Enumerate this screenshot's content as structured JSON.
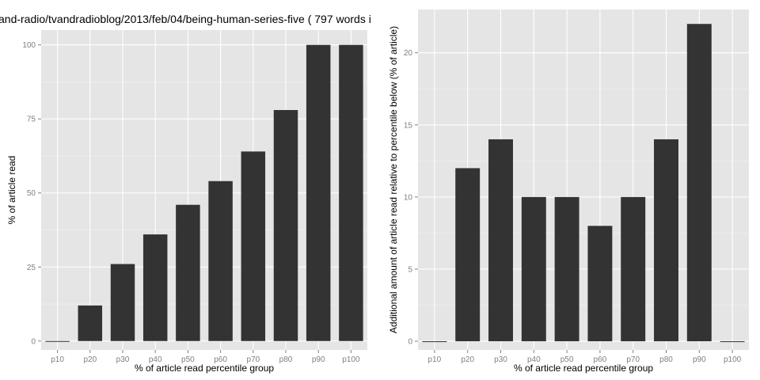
{
  "title": "and-radio/tvandradioblog/2013/feb/04/being-human-series-five ( 797 words i",
  "colors": {
    "panel": "#e5e5e5",
    "bar": "#333333",
    "grid": "#ffffff",
    "tick_text": "#7f7f7f"
  },
  "chart_data": [
    {
      "type": "bar",
      "categories": [
        "p10",
        "p20",
        "p30",
        "p40",
        "p50",
        "p60",
        "p70",
        "p80",
        "p90",
        "p100"
      ],
      "values": [
        0,
        12,
        26,
        36,
        46,
        54,
        64,
        78,
        100,
        100
      ],
      "xlabel": "% of article read percentile group",
      "ylabel": "% of article read",
      "ylim": [
        -3,
        105
      ],
      "yticks": [
        0,
        25,
        50,
        75,
        100
      ],
      "grid": true
    },
    {
      "type": "bar",
      "categories": [
        "p10",
        "p20",
        "p30",
        "p40",
        "p50",
        "p60",
        "p70",
        "p80",
        "p90",
        "p100"
      ],
      "values": [
        0,
        12,
        14,
        10,
        10,
        8,
        10,
        14,
        22,
        0
      ],
      "xlabel": "% of article read percentile group",
      "ylabel": "Additional amount of article read relative to percentile below (% of article)",
      "ylim": [
        -0.6,
        23
      ],
      "yticks": [
        0,
        5,
        10,
        15,
        20
      ],
      "grid": true
    }
  ]
}
